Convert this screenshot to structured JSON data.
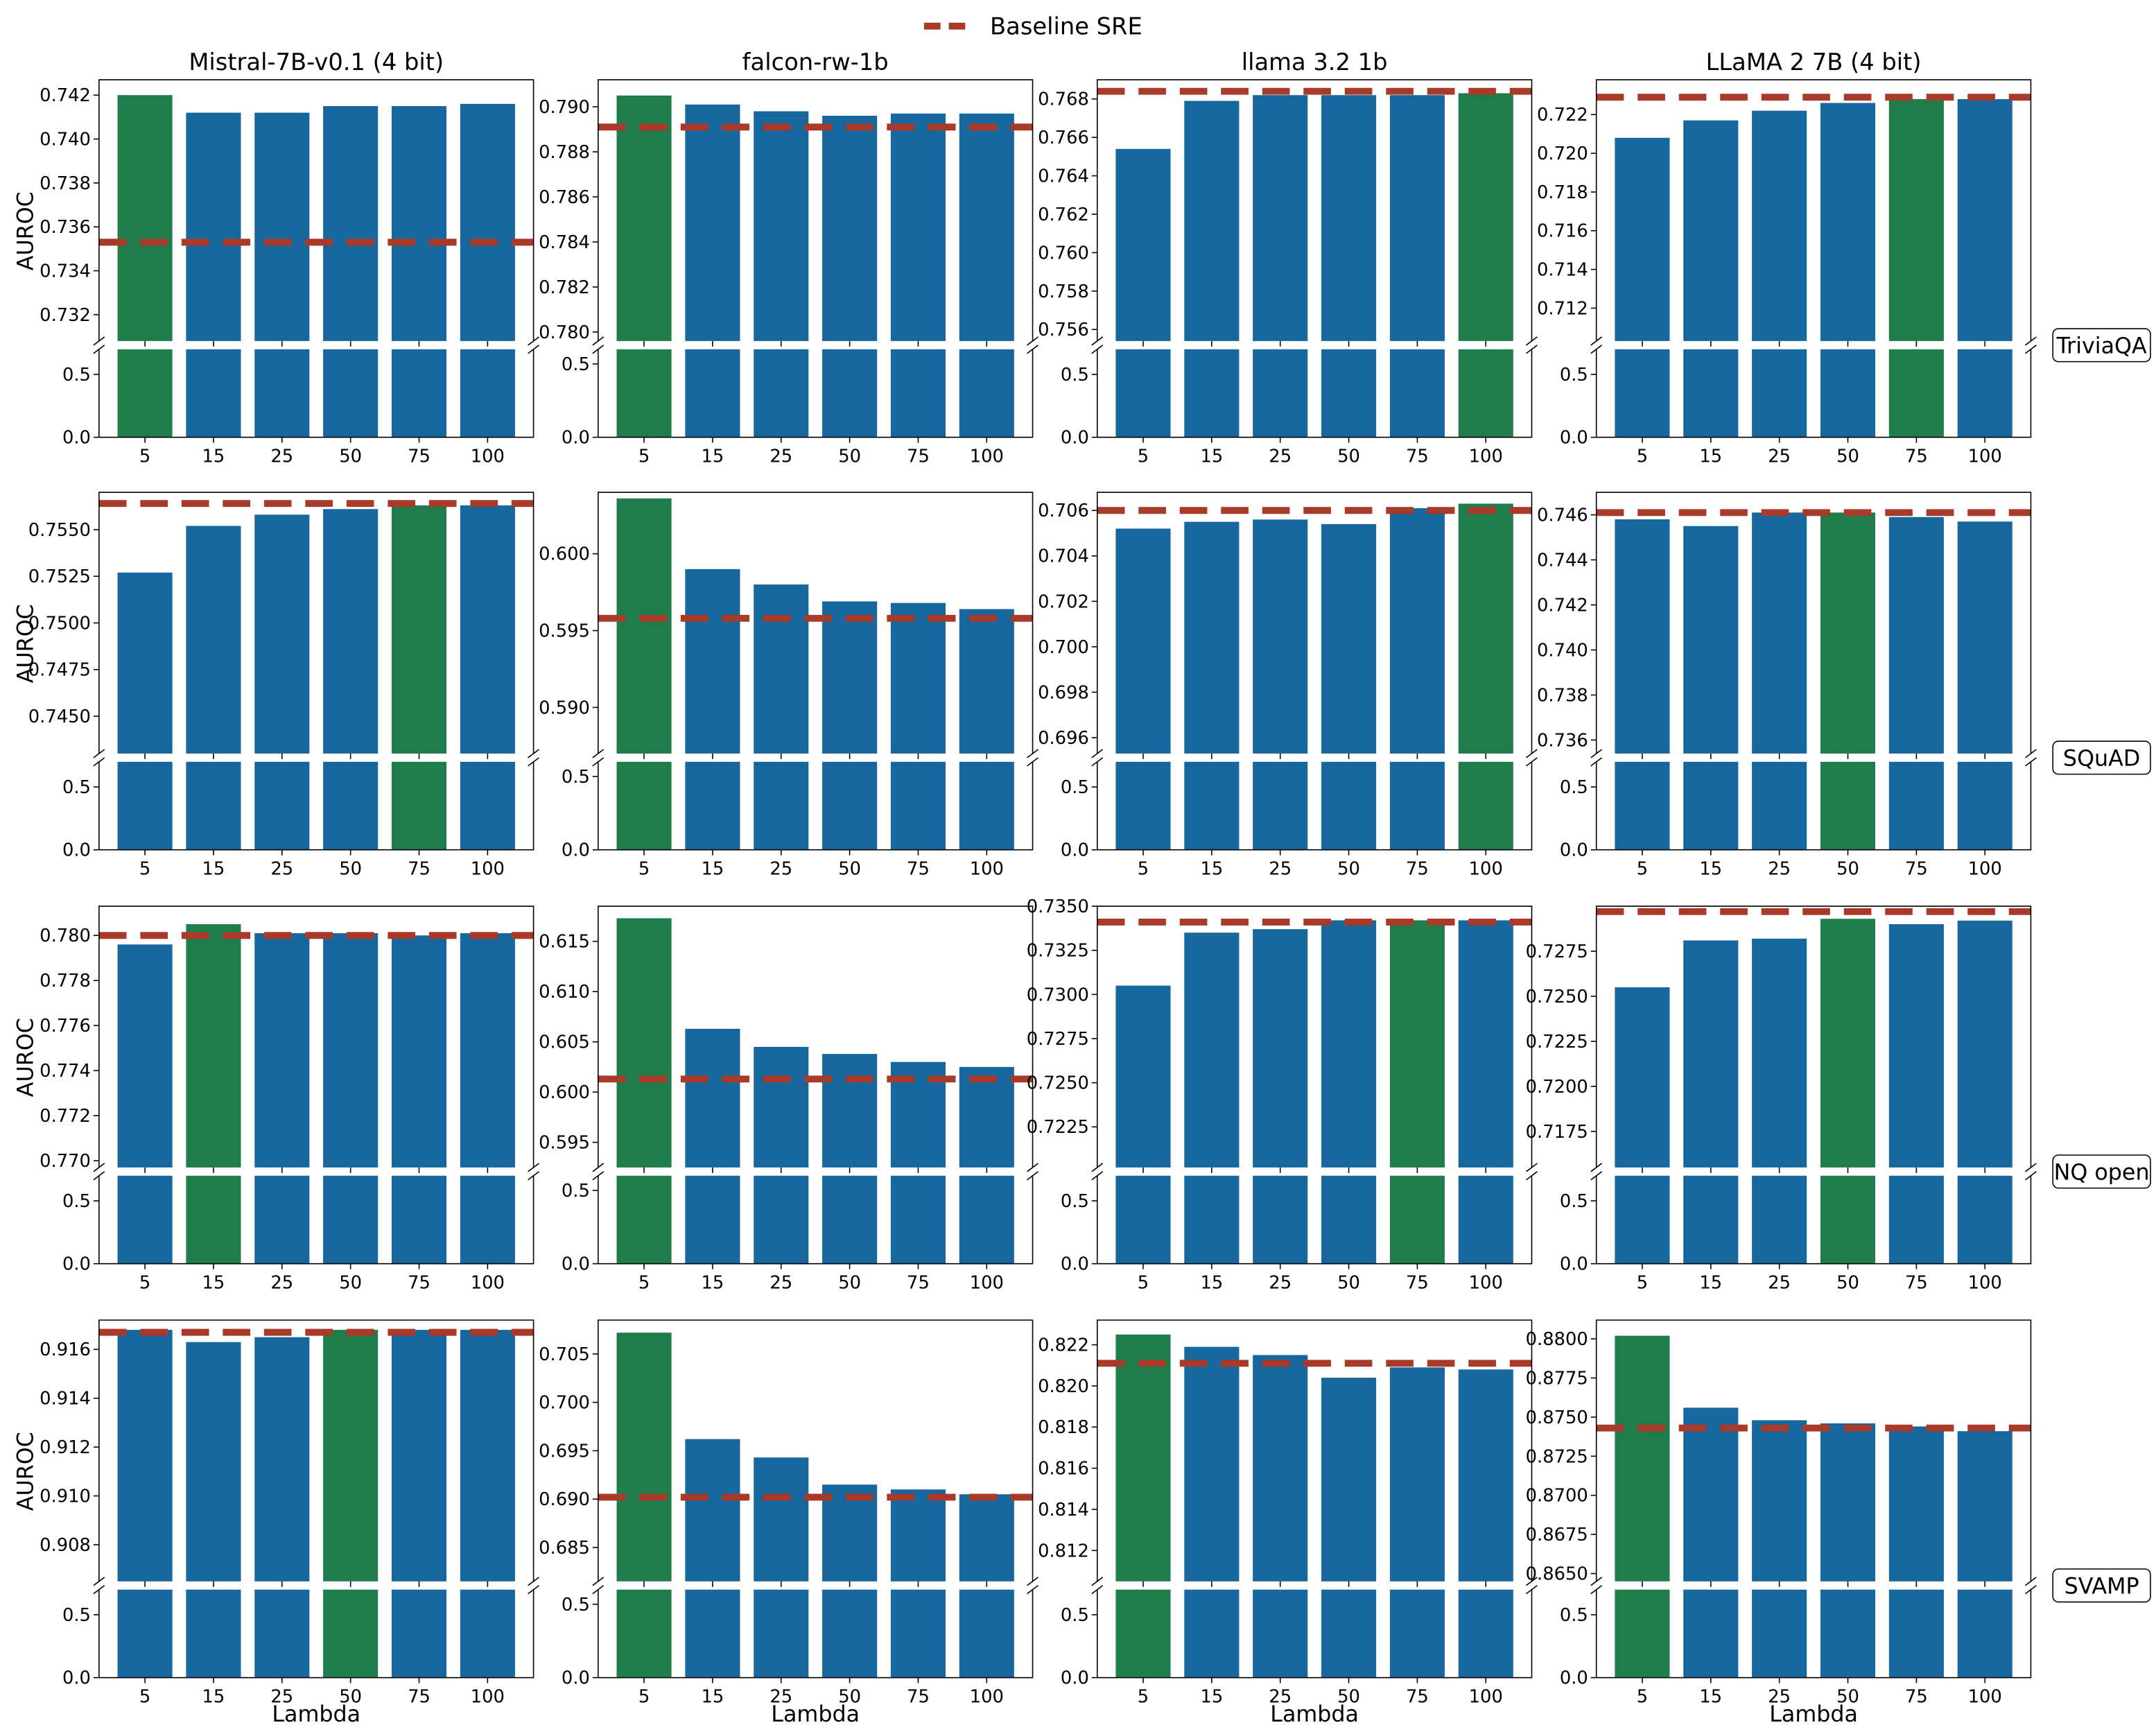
{
  "legend": {
    "label": "Baseline SRE",
    "color": "#a93a2a",
    "placement": "top-center"
  },
  "colors": {
    "bar": "#15679e",
    "best_bar": "#1e7d4a",
    "baseline": "#a93a2a"
  },
  "chart_data": {
    "type": "bar",
    "layout": "4x4 grid of broken-axis bar charts",
    "column_titles": [
      "Mistral-7B-v0.1 (4 bit)",
      "falcon-rw-1b",
      "llama 3.2 1b",
      "LLaMA 2 7B (4 bit)"
    ],
    "row_labels": [
      "TriviaQA",
      "SQuAD",
      "NQ open",
      "SVAMP"
    ],
    "ylabel": "AUROC",
    "xlabel": "Lambda",
    "categories": [
      "5",
      "15",
      "25",
      "50",
      "75",
      "100"
    ],
    "lower_ticks": [
      "0.0",
      "0.5"
    ],
    "panels": [
      [
        {
          "values": [
            0.742,
            0.7412,
            0.7412,
            0.7415,
            0.7415,
            0.7416
          ],
          "baseline": 0.7353,
          "best": 0,
          "ylim": [
            0.7308,
            0.7427
          ],
          "yticks": [
            "0.732",
            "0.734",
            "0.736",
            "0.738",
            "0.740",
            "0.742"
          ],
          "lower_ylim": [
            0,
            0.7
          ]
        },
        {
          "values": [
            0.7905,
            0.7901,
            0.7898,
            0.7896,
            0.7897,
            0.7897
          ],
          "baseline": 0.7891,
          "best": 0,
          "ylim": [
            0.7796,
            0.7912
          ],
          "yticks": [
            "0.780",
            "0.782",
            "0.784",
            "0.786",
            "0.788",
            "0.790"
          ],
          "lower_ylim": [
            0,
            0.6
          ]
        },
        {
          "values": [
            0.7654,
            0.7679,
            0.7682,
            0.7682,
            0.7682,
            0.7683
          ],
          "baseline": 0.7684,
          "best": 5,
          "ylim": [
            0.7554,
            0.769
          ],
          "yticks": [
            "0.756",
            "0.758",
            "0.760",
            "0.762",
            "0.764",
            "0.766",
            "0.768"
          ],
          "lower_ylim": [
            0,
            0.7
          ]
        },
        {
          "values": [
            0.7208,
            0.7217,
            0.7222,
            0.7226,
            0.7228,
            0.7228
          ],
          "baseline": 0.7229,
          "best": 4,
          "ylim": [
            0.7103,
            0.7238
          ],
          "yticks": [
            "0.712",
            "0.714",
            "0.716",
            "0.718",
            "0.720",
            "0.722"
          ],
          "lower_ylim": [
            0,
            0.7
          ]
        }
      ],
      [
        {
          "values": [
            0.7527,
            0.7552,
            0.7558,
            0.7561,
            0.7563,
            0.7563
          ],
          "baseline": 0.7564,
          "best": 4,
          "ylim": [
            0.743,
            0.757
          ],
          "yticks": [
            "0.7450",
            "0.7475",
            "0.7500",
            "0.7525",
            "0.7550"
          ],
          "lower_ylim": [
            0,
            0.7
          ]
        },
        {
          "values": [
            0.6036,
            0.599,
            0.598,
            0.5969,
            0.5968,
            0.5964
          ],
          "baseline": 0.5958,
          "best": 0,
          "ylim": [
            0.587,
            0.604
          ],
          "yticks": [
            "0.590",
            "0.595",
            "0.600"
          ],
          "lower_ylim": [
            0,
            0.6
          ]
        },
        {
          "values": [
            0.7052,
            0.7055,
            0.7056,
            0.7054,
            0.7061,
            0.7063
          ],
          "baseline": 0.706,
          "best": 5,
          "ylim": [
            0.6953,
            0.7068
          ],
          "yticks": [
            "0.696",
            "0.698",
            "0.700",
            "0.702",
            "0.704",
            "0.706"
          ],
          "lower_ylim": [
            0,
            0.7
          ]
        },
        {
          "values": [
            0.7458,
            0.7455,
            0.7461,
            0.7461,
            0.7459,
            0.7457
          ],
          "baseline": 0.7461,
          "best": 3,
          "ylim": [
            0.7354,
            0.747
          ],
          "yticks": [
            "0.736",
            "0.738",
            "0.740",
            "0.742",
            "0.744",
            "0.746"
          ],
          "lower_ylim": [
            0,
            0.7
          ]
        }
      ],
      [
        {
          "values": [
            0.7796,
            0.7805,
            0.7801,
            0.7801,
            0.78,
            0.7801
          ],
          "baseline": 0.78,
          "best": 1,
          "ylim": [
            0.7697,
            0.7813
          ],
          "yticks": [
            "0.770",
            "0.772",
            "0.774",
            "0.776",
            "0.778",
            "0.780"
          ],
          "lower_ylim": [
            0,
            0.7
          ]
        },
        {
          "values": [
            0.6173,
            0.6063,
            0.6045,
            0.6038,
            0.603,
            0.6025
          ],
          "baseline": 0.6013,
          "best": 0,
          "ylim": [
            0.5925,
            0.6185
          ],
          "yticks": [
            "0.595",
            "0.600",
            "0.605",
            "0.610",
            "0.615"
          ],
          "lower_ylim": [
            0,
            0.6
          ]
        },
        {
          "values": [
            0.7305,
            0.7335,
            0.7337,
            0.7342,
            0.7342,
            0.7342
          ],
          "baseline": 0.7341,
          "best": 4,
          "ylim": [
            0.7202,
            0.735
          ],
          "yticks": [
            "0.7225",
            "0.7250",
            "0.7275",
            "0.7300",
            "0.7325",
            "0.7350"
          ],
          "lower_ylim": [
            0,
            0.7
          ]
        },
        {
          "values": [
            0.7255,
            0.7281,
            0.7282,
            0.7293,
            0.729,
            0.7292
          ],
          "baseline": 0.7297,
          "best": 3,
          "ylim": [
            0.7155,
            0.73
          ],
          "yticks": [
            "0.7175",
            "0.7200",
            "0.7225",
            "0.7250",
            "0.7275"
          ],
          "lower_ylim": [
            0,
            0.7
          ]
        }
      ],
      [
        {
          "values": [
            0.9168,
            0.9163,
            0.9165,
            0.9168,
            0.9168,
            0.9168
          ],
          "baseline": 0.9167,
          "best": 3,
          "ylim": [
            0.9065,
            0.9172
          ],
          "yticks": [
            "0.908",
            "0.910",
            "0.912",
            "0.914",
            "0.916"
          ],
          "lower_ylim": [
            0,
            0.7
          ]
        },
        {
          "values": [
            0.7072,
            0.6962,
            0.6943,
            0.6915,
            0.691,
            0.6905
          ],
          "baseline": 0.6902,
          "best": 0,
          "ylim": [
            0.6815,
            0.7085
          ],
          "yticks": [
            "0.685",
            "0.690",
            "0.695",
            "0.700",
            "0.705"
          ],
          "lower_ylim": [
            0,
            0.6
          ]
        },
        {
          "values": [
            0.8225,
            0.8219,
            0.8215,
            0.8204,
            0.8209,
            0.8208
          ],
          "baseline": 0.8211,
          "best": 0,
          "ylim": [
            0.8105,
            0.8232
          ],
          "yticks": [
            "0.812",
            "0.814",
            "0.816",
            "0.818",
            "0.820",
            "0.822"
          ],
          "lower_ylim": [
            0,
            0.7
          ]
        },
        {
          "values": [
            0.8802,
            0.8756,
            0.8748,
            0.8746,
            0.8744,
            0.8741
          ],
          "baseline": 0.8743,
          "best": 0,
          "ylim": [
            0.8645,
            0.8812
          ],
          "yticks": [
            "0.8650",
            "0.8675",
            "0.8700",
            "0.8725",
            "0.8750",
            "0.8775",
            "0.8800"
          ],
          "lower_ylim": [
            0,
            0.7
          ]
        }
      ]
    ]
  }
}
